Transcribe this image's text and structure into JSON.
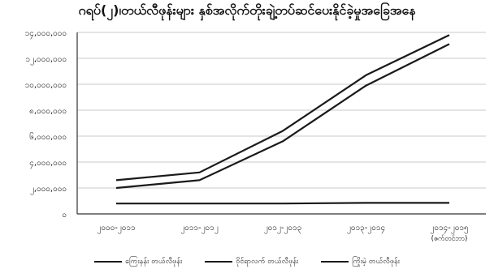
{
  "chart_data": {
    "type": "line",
    "title": "ဂရပ်(၂)၊တယ်လီဖုန်းများ နှစ်အလိုက်တိုးချဲ့တပ်ဆင်ပေးနိုင်ခဲ့မှုအခြေအနေ",
    "xlabel": "",
    "ylabel": "",
    "categories": [
      "၂၀၀၀-၂၀၁၁",
      "၂၀၁၁-၂၀၁၂",
      "၂၀၁၂-၂၀၁၃",
      "၂၀၁၃-၂၀၁၄",
      "၂၀၁၄-၂၀၁၅"
    ],
    "category_sublabels": [
      "",
      "",
      "",
      "",
      "(ဇက်တင်ဘာ)"
    ],
    "y_ticks": [
      "၀",
      "၂,၀၀၀,၀၀၀",
      "၄,၀၀၀,၀၀၀",
      "၆,၀၀၀,၀၀၀",
      "၈,၀၀၀,၀၀၀",
      "၁၀,၀၀၀,၀၀၀",
      "၁၂,၀၀၀,၀၀၀",
      "၁၄,၀၀၀,၀၀၀"
    ],
    "ylim": [
      0,
      14000000
    ],
    "grid": true,
    "legend_position": "bottom",
    "series": [
      {
        "name": "ကြေးနန်း တယ်လီဖုန်း",
        "values": [
          2600000,
          3200000,
          6400000,
          10700000,
          13800000
        ]
      },
      {
        "name": "ဝိုင်ရာလက် တယ်လီဖုန်း",
        "values": [
          2000000,
          2600000,
          5600000,
          9900000,
          13100000
        ]
      },
      {
        "name": "ကြိုးမဲ့ တယ်လီဖုန်း",
        "values": [
          800000,
          800000,
          800000,
          850000,
          850000
        ]
      }
    ]
  }
}
